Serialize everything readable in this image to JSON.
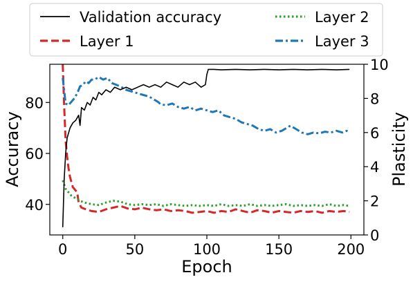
{
  "chart_data": {
    "type": "line",
    "title": "",
    "xlabel": "Epoch",
    "ylabel_left": "Accuracy",
    "ylabel_right": "Plasticity",
    "xlim": [
      -9,
      209
    ],
    "ylim_left": [
      28,
      95
    ],
    "ylim_right": [
      0,
      10
    ],
    "xticks": [
      0,
      50,
      100,
      150,
      200
    ],
    "yticks_left": [
      40,
      60,
      80
    ],
    "yticks_right": [
      0,
      2,
      4,
      6,
      8,
      10
    ],
    "grid": false,
    "legend_placement": "above plot, two columns",
    "legend_order": [
      "Validation accuracy",
      "Layer 2",
      "Layer 1",
      "Layer 3"
    ],
    "series": [
      {
        "name": "Validation accuracy",
        "axis": "left",
        "color": "#000000",
        "style": "solid",
        "points": [
          [
            0,
            31
          ],
          [
            1,
            50
          ],
          [
            2,
            60
          ],
          [
            3,
            66
          ],
          [
            5,
            70
          ],
          [
            7,
            72
          ],
          [
            9,
            73
          ],
          [
            11,
            75
          ],
          [
            12,
            71
          ],
          [
            13,
            78
          ],
          [
            15,
            77
          ],
          [
            17,
            80
          ],
          [
            19,
            79
          ],
          [
            21,
            82
          ],
          [
            23,
            81
          ],
          [
            25,
            84
          ],
          [
            27,
            83
          ],
          [
            30,
            85
          ],
          [
            33,
            84
          ],
          [
            36,
            86
          ],
          [
            40,
            85
          ],
          [
            44,
            86
          ],
          [
            48,
            85
          ],
          [
            52,
            86
          ],
          [
            56,
            87
          ],
          [
            60,
            86
          ],
          [
            64,
            87
          ],
          [
            68,
            86
          ],
          [
            72,
            88
          ],
          [
            76,
            87
          ],
          [
            80,
            86
          ],
          [
            84,
            88
          ],
          [
            88,
            87
          ],
          [
            92,
            88
          ],
          [
            96,
            86
          ],
          [
            99,
            87
          ],
          [
            100,
            91
          ],
          [
            101,
            93
          ],
          [
            105,
            93
          ],
          [
            110,
            92.8
          ],
          [
            120,
            93
          ],
          [
            130,
            92.8
          ],
          [
            140,
            93
          ],
          [
            150,
            92.8
          ],
          [
            160,
            93
          ],
          [
            170,
            92.8
          ],
          [
            180,
            93
          ],
          [
            190,
            92.8
          ],
          [
            199,
            93
          ]
        ]
      },
      {
        "name": "Layer 1",
        "axis": "right",
        "color": "#d62728",
        "style": "dashed",
        "points": [
          [
            0,
            10
          ],
          [
            1,
            7.5
          ],
          [
            2,
            5.5
          ],
          [
            3,
            4.6
          ],
          [
            4,
            3.9
          ],
          [
            5,
            3.4
          ],
          [
            6,
            3.1
          ],
          [
            7,
            2.8
          ],
          [
            8,
            2.7
          ],
          [
            9,
            2.6
          ],
          [
            10,
            2.5
          ],
          [
            11,
            1.9
          ],
          [
            13,
            1.6
          ],
          [
            16,
            1.5
          ],
          [
            20,
            1.4
          ],
          [
            25,
            1.35
          ],
          [
            30,
            1.5
          ],
          [
            35,
            1.6
          ],
          [
            40,
            1.7
          ],
          [
            45,
            1.55
          ],
          [
            50,
            1.5
          ],
          [
            55,
            1.6
          ],
          [
            60,
            1.5
          ],
          [
            65,
            1.45
          ],
          [
            70,
            1.5
          ],
          [
            75,
            1.4
          ],
          [
            80,
            1.45
          ],
          [
            85,
            1.4
          ],
          [
            90,
            1.3
          ],
          [
            95,
            1.35
          ],
          [
            100,
            1.4
          ],
          [
            105,
            1.3
          ],
          [
            110,
            1.4
          ],
          [
            115,
            1.35
          ],
          [
            120,
            1.5
          ],
          [
            125,
            1.4
          ],
          [
            130,
            1.3
          ],
          [
            135,
            1.45
          ],
          [
            140,
            1.4
          ],
          [
            145,
            1.3
          ],
          [
            150,
            1.4
          ],
          [
            155,
            1.35
          ],
          [
            160,
            1.3
          ],
          [
            165,
            1.4
          ],
          [
            170,
            1.35
          ],
          [
            175,
            1.4
          ],
          [
            180,
            1.3
          ],
          [
            185,
            1.4
          ],
          [
            190,
            1.35
          ],
          [
            195,
            1.4
          ],
          [
            199,
            1.35
          ]
        ]
      },
      {
        "name": "Layer 2",
        "axis": "right",
        "color": "#2ca02c",
        "style": "dotted",
        "points": [
          [
            0,
            3.2
          ],
          [
            2,
            2.7
          ],
          [
            4,
            2.5
          ],
          [
            6,
            2.3
          ],
          [
            8,
            2.2
          ],
          [
            10,
            2.1
          ],
          [
            12,
            2.0
          ],
          [
            15,
            1.9
          ],
          [
            20,
            1.8
          ],
          [
            25,
            1.75
          ],
          [
            30,
            1.9
          ],
          [
            35,
            2.0
          ],
          [
            40,
            1.95
          ],
          [
            45,
            1.8
          ],
          [
            50,
            1.75
          ],
          [
            55,
            1.8
          ],
          [
            60,
            1.75
          ],
          [
            65,
            1.8
          ],
          [
            70,
            1.7
          ],
          [
            75,
            1.8
          ],
          [
            80,
            1.75
          ],
          [
            85,
            1.7
          ],
          [
            90,
            1.75
          ],
          [
            95,
            1.7
          ],
          [
            100,
            1.75
          ],
          [
            105,
            1.7
          ],
          [
            110,
            1.8
          ],
          [
            115,
            1.7
          ],
          [
            120,
            1.75
          ],
          [
            125,
            1.7
          ],
          [
            130,
            1.8
          ],
          [
            135,
            1.7
          ],
          [
            140,
            1.75
          ],
          [
            145,
            1.7
          ],
          [
            150,
            1.75
          ],
          [
            155,
            1.8
          ],
          [
            160,
            1.7
          ],
          [
            165,
            1.75
          ],
          [
            170,
            1.7
          ],
          [
            175,
            1.75
          ],
          [
            180,
            1.7
          ],
          [
            185,
            1.8
          ],
          [
            190,
            1.7
          ],
          [
            195,
            1.75
          ],
          [
            199,
            1.7
          ]
        ]
      },
      {
        "name": "Layer 3",
        "axis": "right",
        "color": "#1f77b4",
        "style": "dashdot",
        "points": [
          [
            0,
            9.2
          ],
          [
            2,
            7.7
          ],
          [
            4,
            7.6
          ],
          [
            6,
            7.8
          ],
          [
            8,
            8.0
          ],
          [
            10,
            8.3
          ],
          [
            12,
            8.7
          ],
          [
            14,
            8.8
          ],
          [
            16,
            9.0
          ],
          [
            18,
            8.9
          ],
          [
            20,
            9.1
          ],
          [
            22,
            9.1
          ],
          [
            25,
            9.25
          ],
          [
            28,
            9.1
          ],
          [
            31,
            9.2
          ],
          [
            34,
            8.9
          ],
          [
            37,
            8.8
          ],
          [
            40,
            8.7
          ],
          [
            44,
            8.5
          ],
          [
            48,
            8.4
          ],
          [
            52,
            8.3
          ],
          [
            56,
            8.2
          ],
          [
            60,
            8.1
          ],
          [
            63,
            7.95
          ],
          [
            66,
            7.8
          ],
          [
            68,
            7.65
          ],
          [
            72,
            7.6
          ],
          [
            76,
            7.7
          ],
          [
            80,
            7.5
          ],
          [
            84,
            7.4
          ],
          [
            88,
            7.5
          ],
          [
            92,
            7.3
          ],
          [
            96,
            7.4
          ],
          [
            100,
            7.3
          ],
          [
            104,
            7.2
          ],
          [
            108,
            7.3
          ],
          [
            112,
            7.0
          ],
          [
            116,
            6.9
          ],
          [
            120,
            6.8
          ],
          [
            124,
            6.6
          ],
          [
            128,
            6.5
          ],
          [
            132,
            6.4
          ],
          [
            136,
            6.2
          ],
          [
            140,
            6.1
          ],
          [
            144,
            6.2
          ],
          [
            148,
            6.0
          ],
          [
            152,
            6.1
          ],
          [
            156,
            6.3
          ],
          [
            158,
            6.4
          ],
          [
            162,
            6.2
          ],
          [
            166,
            6.0
          ],
          [
            170,
            5.9
          ],
          [
            174,
            6.0
          ],
          [
            178,
            5.95
          ],
          [
            182,
            6.05
          ],
          [
            186,
            6.0
          ],
          [
            190,
            6.1
          ],
          [
            194,
            6.0
          ],
          [
            197,
            6.1
          ],
          [
            199,
            6.05
          ]
        ]
      }
    ]
  }
}
